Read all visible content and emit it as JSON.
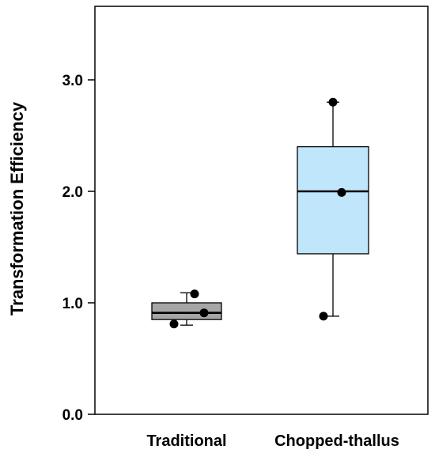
{
  "chart_data": {
    "type": "box",
    "title": "",
    "xlabel": "",
    "ylabel": "Transformation Efficiency",
    "ylim": [
      0,
      3.6
    ],
    "yticks": [
      0.0,
      1.0,
      2.0,
      3.0
    ],
    "ytick_labels": [
      "0.0",
      "1.0",
      "2.0",
      "3.0"
    ],
    "grid": false,
    "legend": "none",
    "categories": [
      "Traditional",
      "Chopped-thallus"
    ],
    "boxes": [
      {
        "category": "Traditional",
        "whisker_low": 0.8,
        "q1": 0.85,
        "median": 0.91,
        "q3": 1.0,
        "whisker_high": 1.09,
        "points": [
          1.08,
          0.81,
          0.91
        ],
        "color": "#a6a6a6"
      },
      {
        "category": "Chopped-thallus",
        "whisker_low": 0.88,
        "q1": 1.44,
        "median": 2.0,
        "q3": 2.4,
        "whisker_high": 2.8,
        "points": [
          2.8,
          1.99,
          0.88
        ],
        "color": "#bfe6fb"
      }
    ]
  }
}
